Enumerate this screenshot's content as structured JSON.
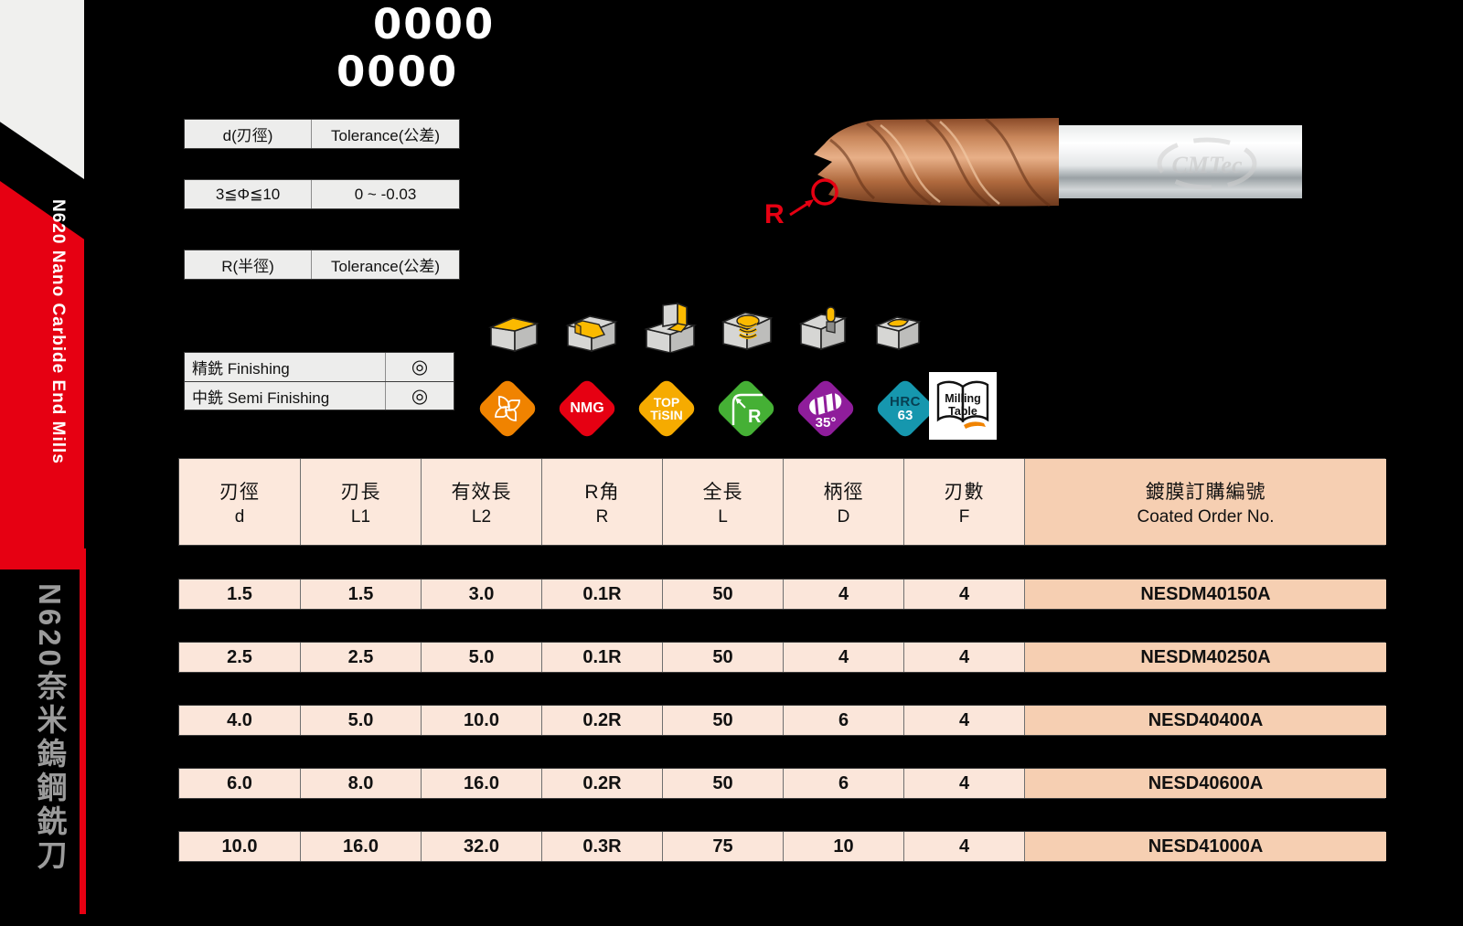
{
  "page": {
    "title_line1": "0000",
    "title_line2": "0000",
    "background": "#000000"
  },
  "sidebar": {
    "series_en": "N620 Nano Carbide End Mills",
    "series_zh": "N620奈米鎢鋼銑刀",
    "accent_red": "#e60012",
    "text_gray": "#9b9b9b"
  },
  "tolerance_tables": {
    "diameter": {
      "header": [
        "d(刃徑)",
        "Tolerance(公差)"
      ],
      "row": [
        "3≦Φ≦10",
        "0 ~ -0.03"
      ]
    },
    "radius": {
      "header": [
        "R(半徑)",
        "Tolerance(公差)"
      ]
    }
  },
  "finishing_table": {
    "rows": [
      {
        "label": "精銑 Finishing",
        "mark": "◎"
      },
      {
        "label": "中銑 Semi Finishing",
        "mark": "◎"
      }
    ]
  },
  "application_icons": [
    "face-milling",
    "slot-milling",
    "shoulder-milling",
    "helical-milling",
    "plunge-milling",
    "pocket-milling"
  ],
  "badges": {
    "flute": {
      "name": "four-flute-badge",
      "color": "#f08300"
    },
    "nmg": {
      "name": "nmg-badge",
      "color": "#e60012",
      "label": "NMG"
    },
    "tisin": {
      "name": "top-tisin-badge",
      "color": "#f6ab00",
      "line1": "TOP",
      "line2": "TiSIN"
    },
    "radius": {
      "name": "corner-radius-badge",
      "color": "#45b035",
      "label": "R"
    },
    "helix": {
      "name": "helix-35-badge",
      "color": "#8f1d9b",
      "label": "35°"
    },
    "hrc": {
      "name": "hrc-63-badge",
      "color": "#1697ae",
      "line1": "HRC",
      "line2": "63"
    },
    "milling_table": {
      "name": "milling-table-badge",
      "line1": "Milling",
      "line2": "Table",
      "accent": "#f08300"
    }
  },
  "product_figure": {
    "radius_label": "R",
    "watermark": "CMTec"
  },
  "main_table": {
    "headers": [
      {
        "zh": "刃徑",
        "en": "d"
      },
      {
        "zh": "刃長",
        "en": "L1"
      },
      {
        "zh": "有效長",
        "en": "L2"
      },
      {
        "zh": "R角",
        "en": "R"
      },
      {
        "zh": "全長",
        "en": "L"
      },
      {
        "zh": "柄徑",
        "en": "D"
      },
      {
        "zh": "刃數",
        "en": "F"
      },
      {
        "zh": "鍍膜訂購編號",
        "en": "Coated Order No."
      }
    ],
    "rows": [
      [
        "1.5",
        "1.5",
        "3.0",
        "0.1R",
        "50",
        "4",
        "4",
        "NESDM40150A"
      ],
      [
        "2.5",
        "2.5",
        "5.0",
        "0.1R",
        "50",
        "4",
        "4",
        "NESDM40250A"
      ],
      [
        "4.0",
        "5.0",
        "10.0",
        "0.2R",
        "50",
        "6",
        "4",
        "NESD40400A"
      ],
      [
        "6.0",
        "8.0",
        "16.0",
        "0.2R",
        "50",
        "6",
        "4",
        "NESD40600A"
      ],
      [
        "10.0",
        "16.0",
        "32.0",
        "0.3R",
        "75",
        "10",
        "4",
        "NESD41000A"
      ]
    ],
    "colors": {
      "cell": "#fbe6da",
      "header": "#fce8dc",
      "wide_col": "#f6cfb2"
    }
  }
}
